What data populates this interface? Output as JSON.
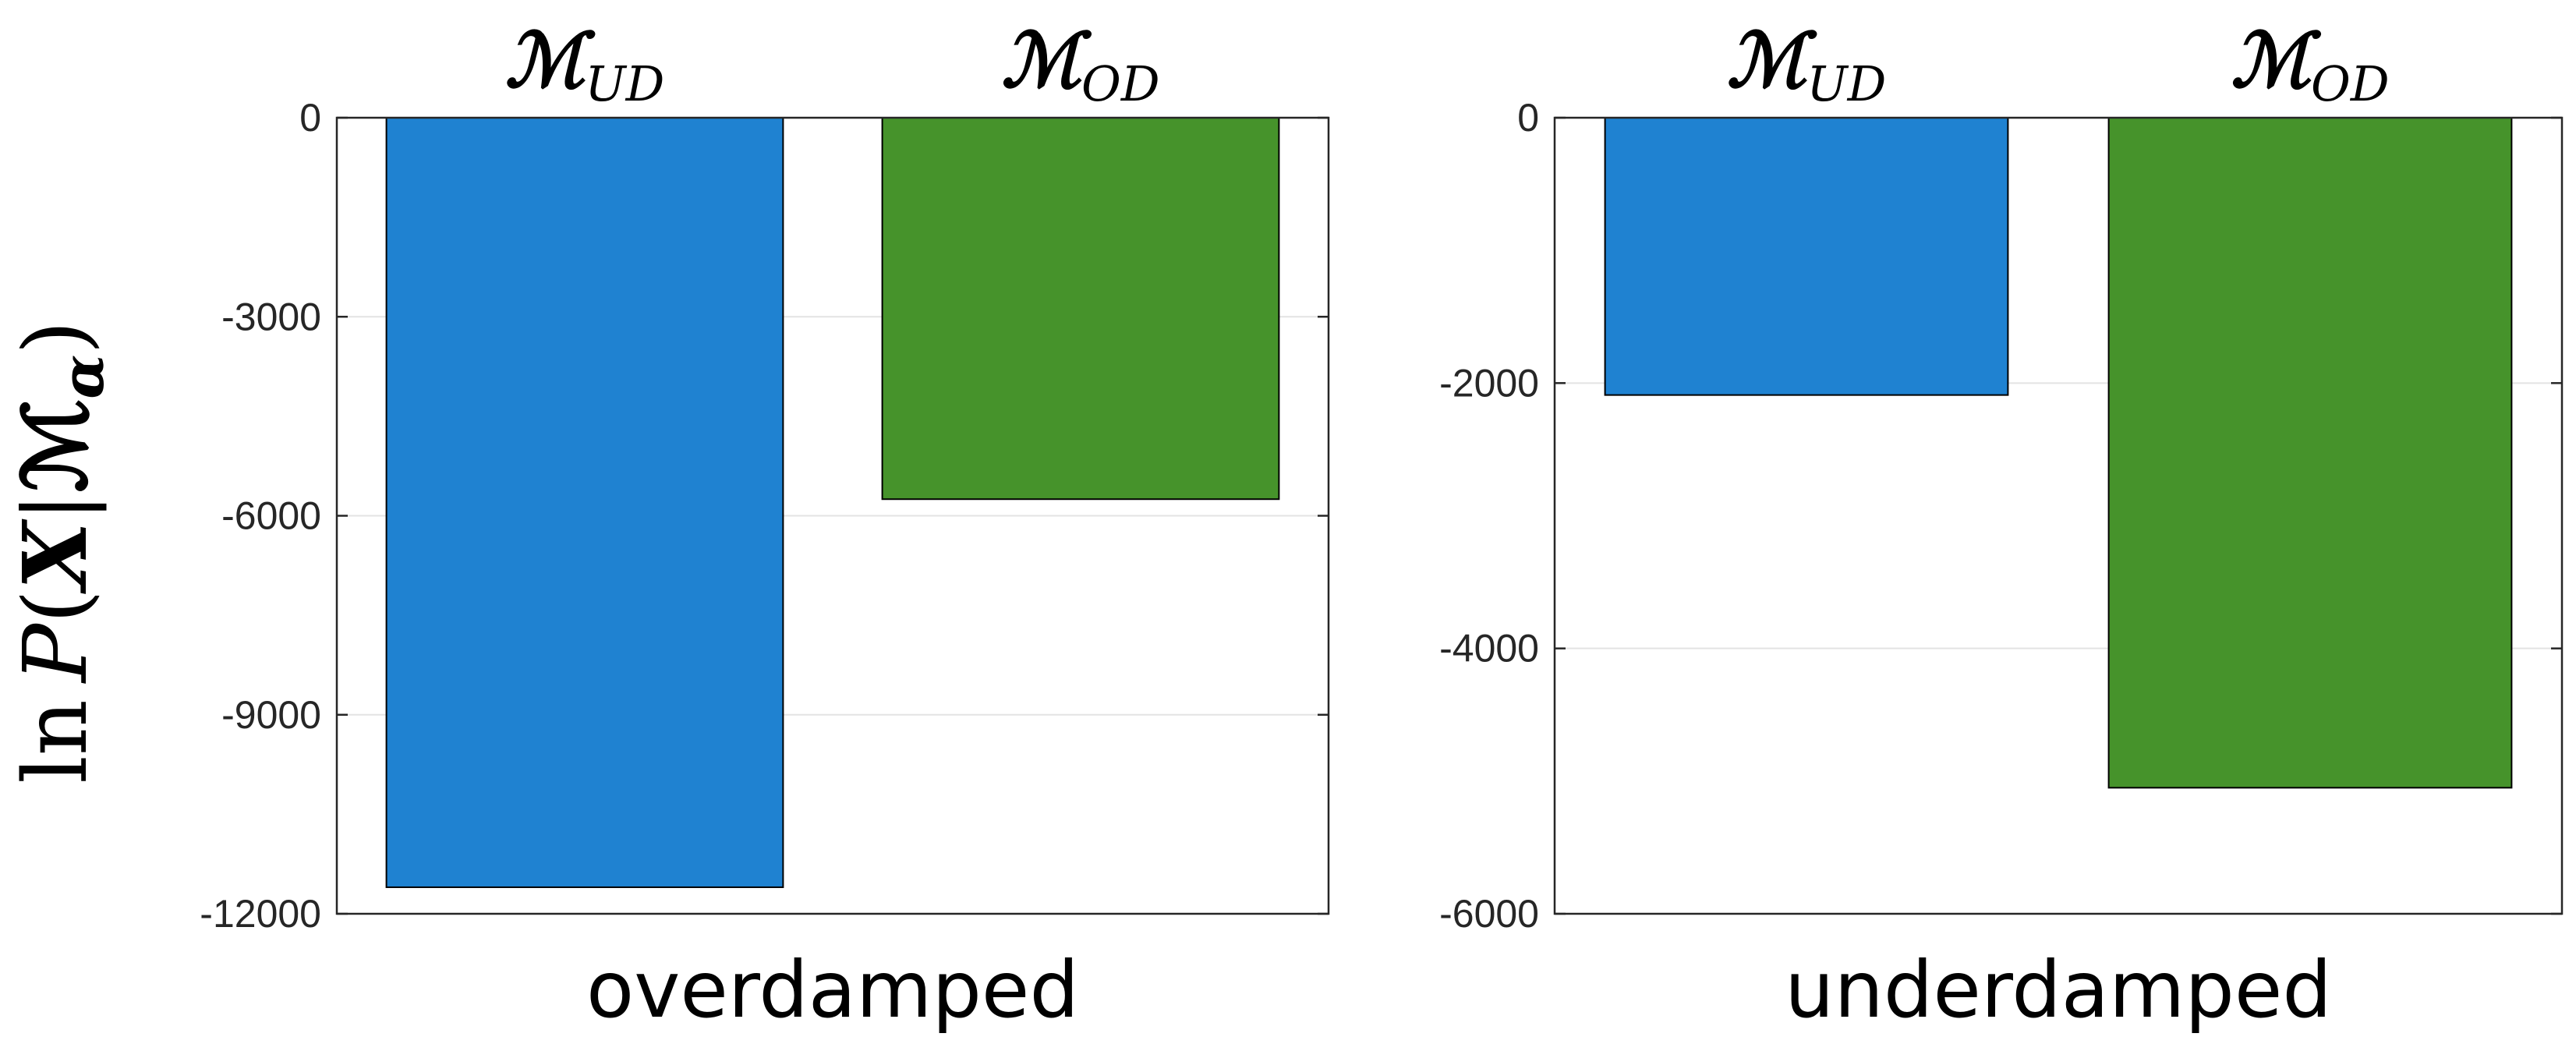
{
  "ylabel": "ln P(X|ℳα)",
  "ylabel_parts": {
    "fn": "ln",
    "var": "P",
    "open": "(",
    "data": "X",
    "bar": "|",
    "model": "ℳ",
    "model_sub": "α",
    "close": ")"
  },
  "chart_data": [
    {
      "type": "bar",
      "xlabel": "overdamped",
      "categories": [
        {
          "main": "ℳ",
          "sub": "UD"
        },
        {
          "main": "ℳ",
          "sub": "OD"
        }
      ],
      "values": [
        -11600,
        -5750
      ],
      "ylim": [
        -12000,
        0
      ],
      "yticks": [
        0,
        -3000,
        -6000,
        -9000,
        -12000
      ],
      "ytick_labels": [
        "0",
        "-3000",
        "-6000",
        "-9000",
        "-12000"
      ],
      "grid": true
    },
    {
      "type": "bar",
      "xlabel": "underdamped",
      "categories": [
        {
          "main": "ℳ",
          "sub": "UD"
        },
        {
          "main": "ℳ",
          "sub": "OD"
        }
      ],
      "values": [
        -2090,
        -5050
      ],
      "ylim": [
        -6000,
        0
      ],
      "yticks": [
        0,
        -2000,
        -4000,
        -6000
      ],
      "ytick_labels": [
        "0",
        "-2000",
        "-4000",
        "-6000"
      ],
      "grid": true
    }
  ],
  "colors": {
    "bar_UD": "#1f82d1",
    "bar_OD": "#46932b",
    "axis": "#262626",
    "grid": "#e3e3e3",
    "bar_edge": "#000000"
  }
}
